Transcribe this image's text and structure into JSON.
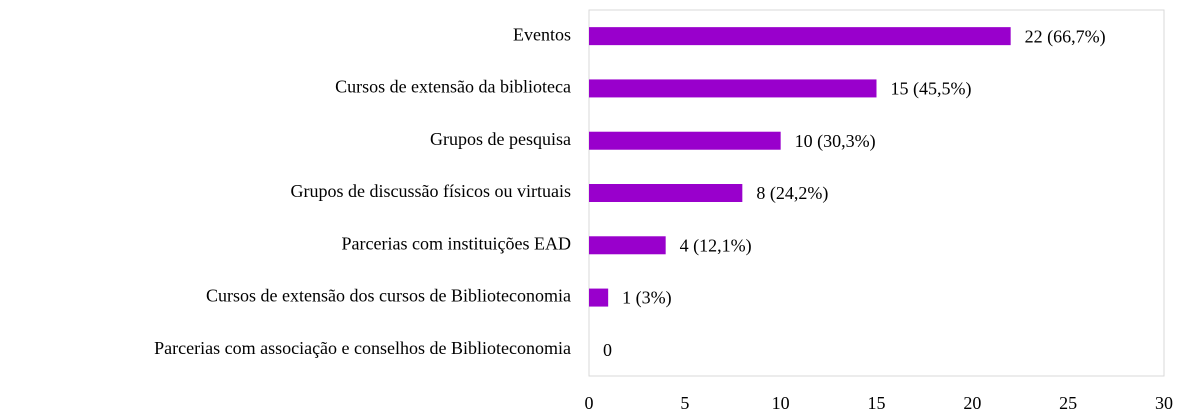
{
  "chart_data": {
    "type": "barh",
    "categories": [
      "Eventos",
      "Cursos de extensão da biblioteca",
      "Grupos de pesquisa",
      "Grupos de discussão físicos ou virtuais",
      "Parcerias com instituições EAD",
      "Cursos de extensão dos cursos de Biblioteconomia",
      "Parcerias com associação e conselhos de Biblioteconomia"
    ],
    "values": [
      22,
      15,
      10,
      8,
      4,
      1,
      0
    ],
    "value_labels": [
      "22 (66,7%)",
      "15 (45,5%)",
      "10 (30,3%)",
      "8 (24,2%)",
      "4 (12,1%)",
      "1 (3%)",
      "0"
    ],
    "color": "#9900cc",
    "xlim": [
      0,
      30
    ],
    "xticks": [
      0,
      5,
      10,
      15,
      20,
      25,
      30
    ],
    "grid": false
  }
}
